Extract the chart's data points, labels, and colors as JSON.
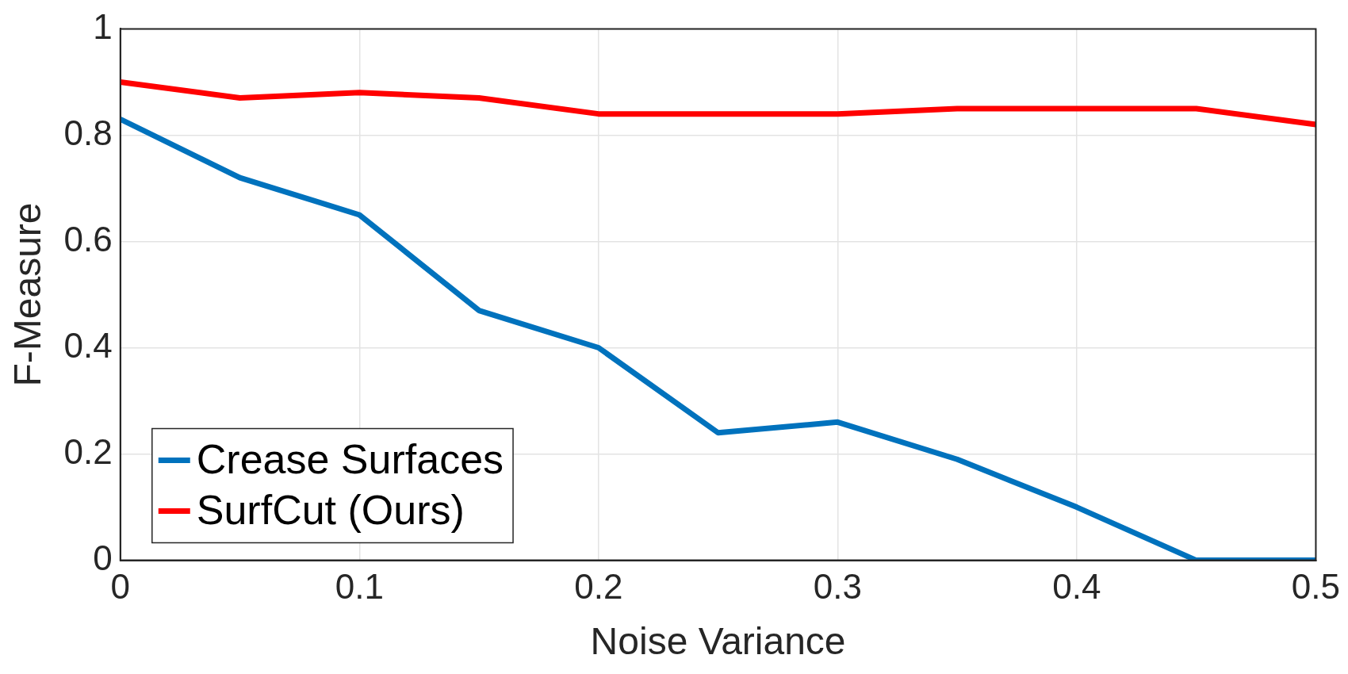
{
  "chart_data": {
    "type": "line",
    "xlabel": "Noise Variance",
    "ylabel": "F-Measure",
    "x": [
      0,
      0.05,
      0.1,
      0.15,
      0.2,
      0.25,
      0.3,
      0.35,
      0.4,
      0.45,
      0.5
    ],
    "series": [
      {
        "name": "Crease Surfaces",
        "color": "#0072bd",
        "values": [
          0.83,
          0.72,
          0.65,
          0.47,
          0.4,
          0.24,
          0.26,
          0.19,
          0.1,
          0,
          0
        ]
      },
      {
        "name": "SurfCut (Ours)",
        "color": "#ff0000",
        "values": [
          0.9,
          0.87,
          0.88,
          0.87,
          0.84,
          0.84,
          0.84,
          0.85,
          0.85,
          0.85,
          0.82
        ]
      }
    ],
    "xlim": [
      0,
      0.5
    ],
    "xticks": [
      0,
      0.1,
      0.2,
      0.3,
      0.4,
      0.5
    ],
    "ylim": [
      0,
      1
    ],
    "yticks": [
      0,
      0.2,
      0.4,
      0.6,
      0.8,
      1
    ],
    "grid": true,
    "legend": "bottom left",
    "marker": "none",
    "line_style": "solid"
  }
}
